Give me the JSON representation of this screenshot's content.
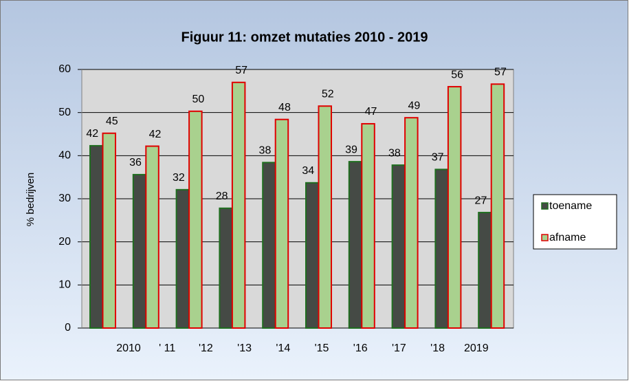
{
  "chart_data": {
    "type": "bar",
    "title": "Figuur 11: omzet mutaties 2010 - 2019",
    "y_label": "% bedrijven",
    "categories": [
      "2010",
      "' 11",
      "'12",
      "'13",
      "'14",
      "'15",
      "'16",
      "'17",
      "'18",
      "2019"
    ],
    "series": [
      {
        "name": "toename",
        "color": "#454a45",
        "edge": "#1f6e1f",
        "values": [
          42.3,
          35.6,
          32.1,
          27.8,
          38.4,
          33.7,
          38.6,
          37.8,
          36.8,
          26.8
        ],
        "value_labels": [
          "42",
          "36",
          "32",
          "28",
          "38",
          "34",
          "39",
          "38",
          "37",
          "27"
        ]
      },
      {
        "name": "afname",
        "color": "#a9d18e",
        "edge": "#e00000",
        "values": [
          45.2,
          42.2,
          50.3,
          57,
          48.4,
          51.5,
          47.4,
          48.8,
          56,
          56.6
        ],
        "value_labels": [
          "45",
          "42",
          "50",
          "57",
          "48",
          "52",
          "47",
          "49",
          "56",
          "57"
        ]
      }
    ],
    "ylim": [
      0,
      60
    ],
    "yticks": [
      0,
      10,
      20,
      30,
      40,
      50,
      60
    ],
    "grid": true,
    "legend": "right"
  }
}
